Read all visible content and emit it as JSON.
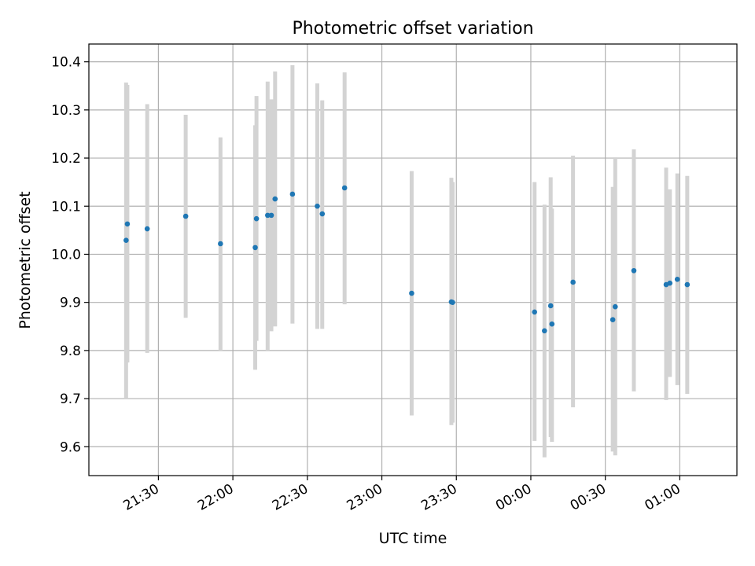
{
  "chart_data": {
    "type": "scatter",
    "title": "Photometric offset variation",
    "xlabel": "UTC time",
    "ylabel": "Photometric offset",
    "x_unit": "time (HH:MM)",
    "xlim": [
      "21:02",
      "01:23"
    ],
    "ylim": [
      9.54,
      10.437
    ],
    "grid": true,
    "xticks": [
      "21:30",
      "22:00",
      "22:30",
      "23:00",
      "23:30",
      "00:00",
      "00:30",
      "01:00"
    ],
    "yticks": [
      "9.6",
      "9.7",
      "9.8",
      "9.9",
      "10.0",
      "10.1",
      "10.2",
      "10.3",
      "10.4"
    ],
    "marker_color": "#1f77b4",
    "errorbar_color": "#d3d3d3",
    "points": [
      {
        "t": "21:17",
        "y": 10.029,
        "lo": 9.7,
        "hi": 10.357
      },
      {
        "t": "21:17.5",
        "y": 10.063,
        "lo": 9.775,
        "hi": 10.352
      },
      {
        "t": "21:25.5",
        "y": 10.053,
        "lo": 9.795,
        "hi": 10.312
      },
      {
        "t": "21:41",
        "y": 10.079,
        "lo": 9.868,
        "hi": 10.29
      },
      {
        "t": "21:55",
        "y": 10.022,
        "lo": 9.8,
        "hi": 10.243
      },
      {
        "t": "22:09",
        "y": 10.014,
        "lo": 9.76,
        "hi": 10.268
      },
      {
        "t": "22:09.5",
        "y": 10.074,
        "lo": 9.82,
        "hi": 10.329
      },
      {
        "t": "22:14",
        "y": 10.081,
        "lo": 9.8,
        "hi": 10.359
      },
      {
        "t": "22:15.5",
        "y": 10.081,
        "lo": 9.84,
        "hi": 10.322
      },
      {
        "t": "22:17",
        "y": 10.115,
        "lo": 9.85,
        "hi": 10.38
      },
      {
        "t": "22:24",
        "y": 10.125,
        "lo": 9.856,
        "hi": 10.393
      },
      {
        "t": "22:34",
        "y": 10.1,
        "lo": 9.845,
        "hi": 10.355
      },
      {
        "t": "22:36",
        "y": 10.084,
        "lo": 9.845,
        "hi": 10.32
      },
      {
        "t": "22:45",
        "y": 10.138,
        "lo": 9.896,
        "hi": 10.378
      },
      {
        "t": "23:12",
        "y": 9.919,
        "lo": 9.665,
        "hi": 10.173
      },
      {
        "t": "23:28",
        "y": 9.901,
        "lo": 9.645,
        "hi": 10.159
      },
      {
        "t": "23:28.5",
        "y": 9.9,
        "lo": 9.65,
        "hi": 10.15
      },
      {
        "t": "00:01.5",
        "y": 9.88,
        "lo": 9.612,
        "hi": 10.15
      },
      {
        "t": "00:05.5",
        "y": 9.841,
        "lo": 9.578,
        "hi": 10.103
      },
      {
        "t": "00:08",
        "y": 9.893,
        "lo": 9.62,
        "hi": 10.16
      },
      {
        "t": "00:08.5",
        "y": 9.855,
        "lo": 9.61,
        "hi": 10.095
      },
      {
        "t": "00:17",
        "y": 9.942,
        "lo": 9.682,
        "hi": 10.205
      },
      {
        "t": "00:33",
        "y": 9.864,
        "lo": 9.59,
        "hi": 10.14
      },
      {
        "t": "00:34",
        "y": 9.891,
        "lo": 9.582,
        "hi": 10.2
      },
      {
        "t": "00:41.5",
        "y": 9.966,
        "lo": 9.715,
        "hi": 10.218
      },
      {
        "t": "00:54.5",
        "y": 9.937,
        "lo": 9.697,
        "hi": 10.18
      },
      {
        "t": "00:56",
        "y": 9.94,
        "lo": 9.745,
        "hi": 10.135
      },
      {
        "t": "00:59",
        "y": 9.948,
        "lo": 9.728,
        "hi": 10.168
      },
      {
        "t": "01:03",
        "y": 9.937,
        "lo": 9.71,
        "hi": 10.163
      }
    ]
  }
}
